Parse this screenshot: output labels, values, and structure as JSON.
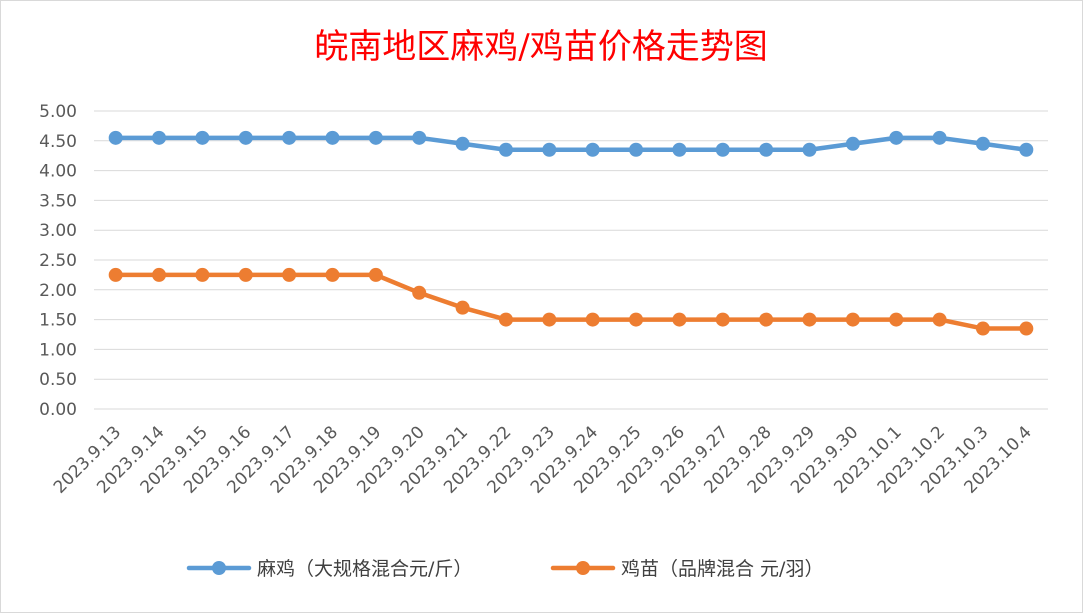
{
  "chart_data": {
    "type": "line",
    "title": "皖南地区麻鸡/鸡苗价格走势图",
    "xlabel": "",
    "ylabel": "",
    "categories": [
      "2023.9.13",
      "2023.9.14",
      "2023.9.15",
      "2023.9.16",
      "2023.9.17",
      "2023.9.18",
      "2023.9.19",
      "2023.9.20",
      "2023.9.21",
      "2023.9.22",
      "2023.9.23",
      "2023.9.24",
      "2023.9.25",
      "2023.9.26",
      "2023.9.27",
      "2023.9.28",
      "2023.9.29",
      "2023.9.30",
      "2023.10.1",
      "2023.10.2",
      "2023.10.3",
      "2023.10.4"
    ],
    "ylim": [
      0,
      5
    ],
    "yticks": [
      "0.00",
      "0.50",
      "1.00",
      "1.50",
      "2.00",
      "2.50",
      "3.00",
      "3.50",
      "4.00",
      "4.50",
      "5.00"
    ],
    "grid": true,
    "legend_position": "bottom",
    "series": [
      {
        "name": "麻鸡（大规格混合元/斤）",
        "color": "#5b9bd5",
        "values": [
          4.55,
          4.55,
          4.55,
          4.55,
          4.55,
          4.55,
          4.55,
          4.55,
          4.45,
          4.35,
          4.35,
          4.35,
          4.35,
          4.35,
          4.35,
          4.35,
          4.35,
          4.45,
          4.55,
          4.55,
          4.45,
          4.35
        ]
      },
      {
        "name": "鸡苗（品牌混合 元/羽）",
        "color": "#ed7d31",
        "values": [
          2.25,
          2.25,
          2.25,
          2.25,
          2.25,
          2.25,
          2.25,
          1.95,
          1.7,
          1.5,
          1.5,
          1.5,
          1.5,
          1.5,
          1.5,
          1.5,
          1.5,
          1.5,
          1.5,
          1.5,
          1.35,
          1.35
        ]
      }
    ]
  }
}
